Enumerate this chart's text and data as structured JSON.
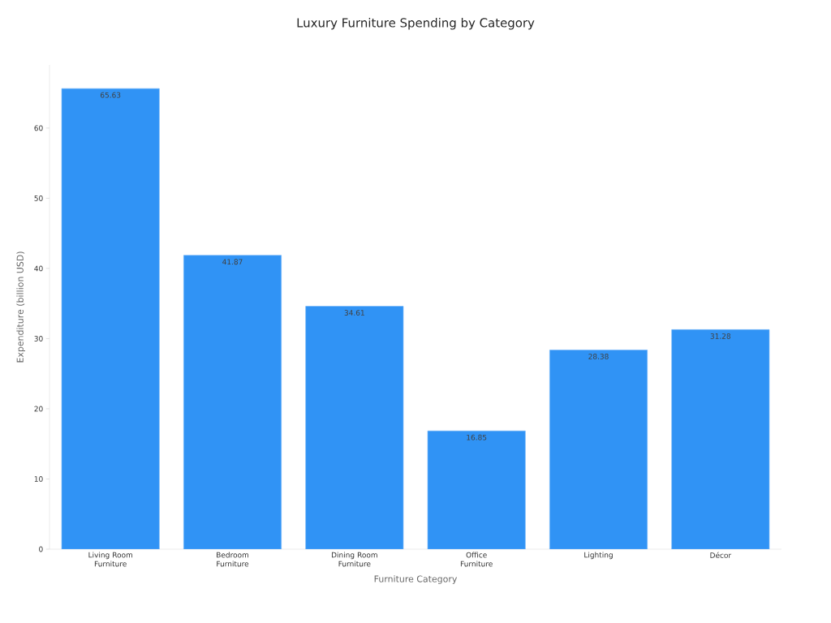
{
  "chart_data": {
    "type": "bar",
    "title": "Luxury Furniture Spending by Category",
    "xlabel": "Furniture Category",
    "ylabel": "Expenditure (billion USD)",
    "categories": [
      "Living Room Furniture",
      "Bedroom Furniture",
      "Dining Room Furniture",
      "Office Furniture",
      "Lighting",
      "Décor"
    ],
    "values": [
      65.63,
      41.87,
      34.61,
      16.85,
      28.38,
      31.28
    ],
    "color": "#3093f5",
    "ylim": [
      0,
      69
    ],
    "yticks": [
      0,
      10,
      20,
      30,
      40,
      50,
      60
    ],
    "data_labels": true
  }
}
